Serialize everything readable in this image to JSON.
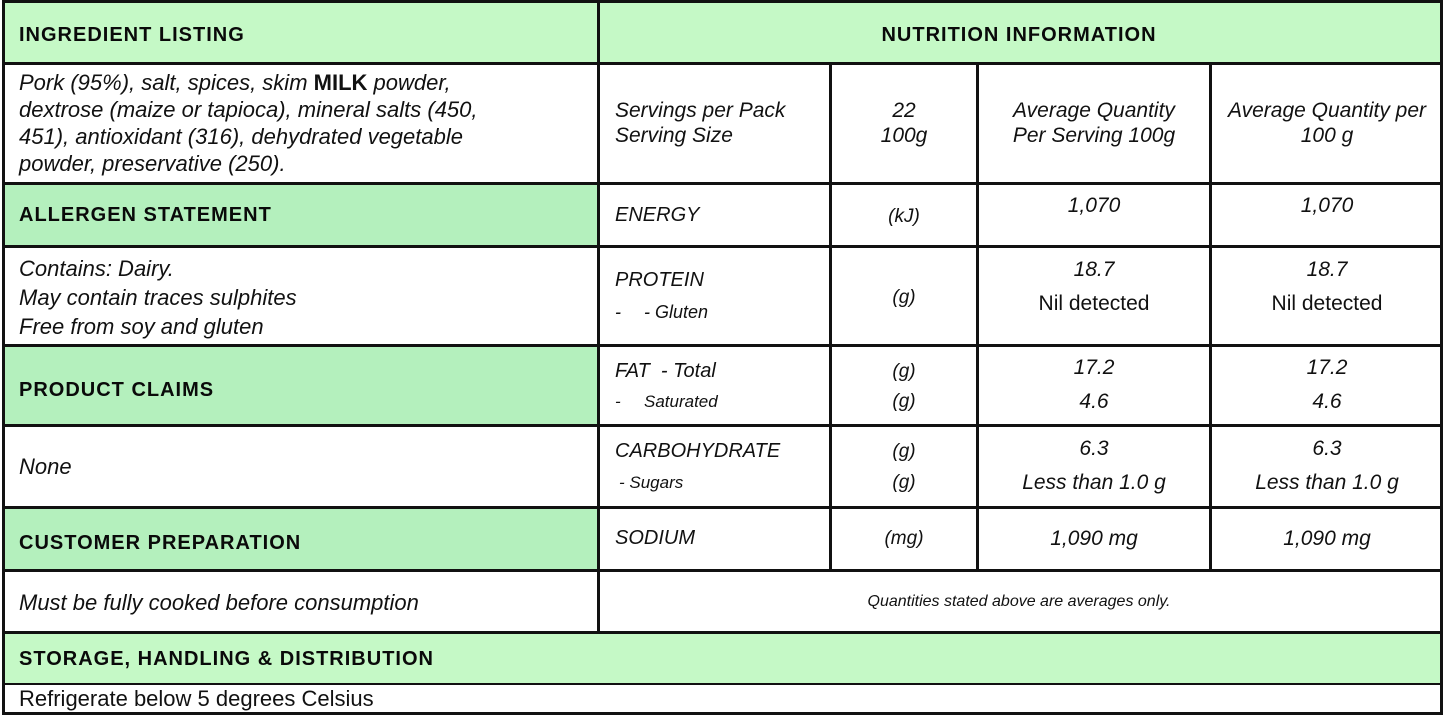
{
  "ingredient": {
    "title": "INGREDIENT LISTING",
    "line1_pre": "Pork (95%), salt, spices, skim ",
    "line1_bold": "MILK",
    "line1_post": " powder,",
    "line2": "dextrose (maize  or tapioca), mineral salts (450,",
    "line3": "451), antioxidant (316), dehydrated vegetable",
    "line4": "powder, preservative (250)."
  },
  "allergen": {
    "title": "ALLERGEN STATEMENT",
    "line1": "Contains: Dairy.",
    "line2": "May contain traces sulphites",
    "line3": "Free from soy and gluten"
  },
  "claims": {
    "title": "PRODUCT CLAIMS",
    "value": "None"
  },
  "preparation": {
    "title": "CUSTOMER PREPARATION",
    "value": "Must be fully cooked before consumption"
  },
  "storage": {
    "title": "STORAGE, HANDLING & DISTRIBUTION",
    "value": "Refrigerate below 5 degrees Celsius"
  },
  "nutrition": {
    "title": "NUTRITION INFORMATION",
    "header": {
      "servings_label": "Servings per Pack",
      "serving_size_label": "Serving Size",
      "servings_value": "22",
      "serving_size_value": "100g",
      "col1_line1": "Average Quantity",
      "col1_line2": "Per Serving 100g",
      "col2_line1": "Average Quantity per",
      "col2_line2": "100 g"
    },
    "energy": {
      "label": "ENERGY",
      "unit": "(kJ)",
      "per_serving": "1,070",
      "per_100g": "1,070"
    },
    "protein": {
      "label": "PROTEIN",
      "sub_dash": "-",
      "sub_label": "- Gluten",
      "unit": "(g)",
      "per_serving": "18.7",
      "per_100g": "18.7",
      "sub_per_serving": "Nil detected",
      "sub_per_100g": "Nil detected"
    },
    "fat": {
      "label": "FAT  - Total",
      "sub_dash": "-",
      "sub_label": "Saturated",
      "unit": "(g)",
      "sub_unit": "(g)",
      "per_serving": "17.2",
      "per_100g": "17.2",
      "sub_per_serving": "4.6",
      "sub_per_100g": "4.6"
    },
    "carbohydrate": {
      "label": "CARBOHYDRATE",
      "sub_label": "- Sugars",
      "unit": "(g)",
      "sub_unit": "(g)",
      "per_serving": "6.3",
      "per_100g": "6.3",
      "sub_per_serving": "Less than 1.0 g",
      "sub_per_100g": "Less than 1.0 g"
    },
    "sodium": {
      "label": "SODIUM",
      "unit": "(mg)",
      "per_serving": "1,090 mg",
      "per_100g": "1,090 mg"
    },
    "footnote": "Quantities stated above are averages only."
  }
}
